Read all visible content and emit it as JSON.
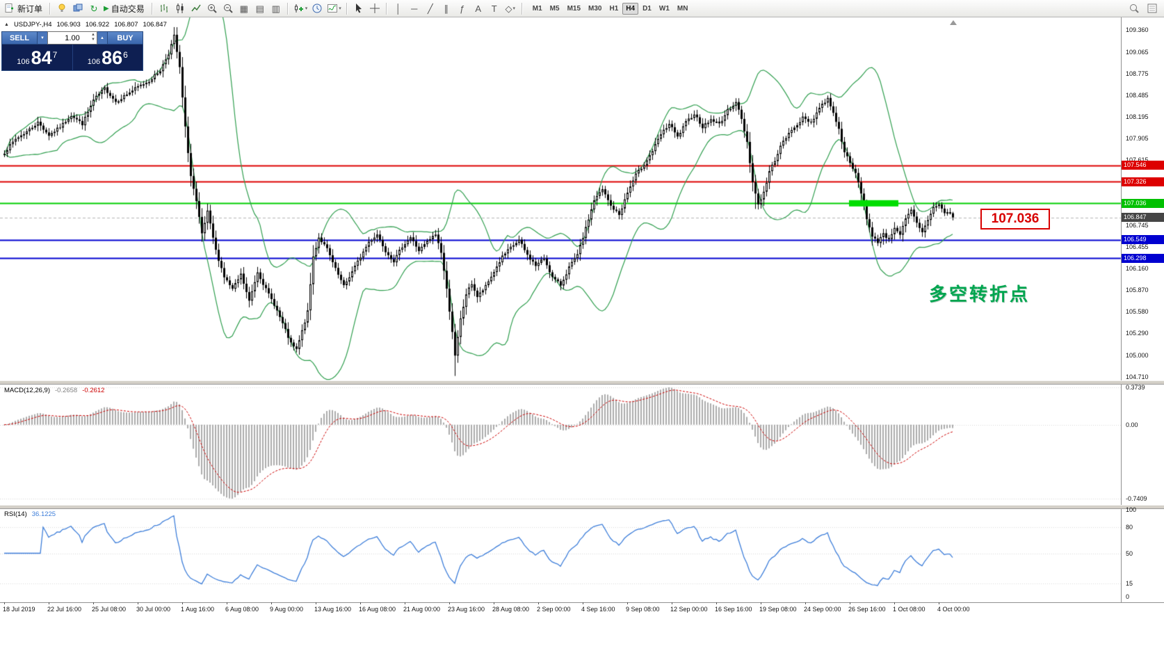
{
  "toolbar": {
    "new_order_label": "新订单",
    "autotrade_label": "自动交易",
    "timeframes": [
      "M1",
      "M5",
      "M15",
      "M30",
      "H1",
      "H4",
      "D1",
      "W1",
      "MN"
    ],
    "active_timeframe": "H4",
    "icons": {
      "one-click": "▲",
      "play": "▶",
      "refresh": "↻",
      "grid": "▦",
      "tile-h": "▤",
      "tile-v": "▥",
      "crosshair": "+",
      "vline": "│",
      "hline": "─",
      "trendline": "╱",
      "channel": "∥",
      "fibo": "ƒ",
      "text": "A",
      "label": "T",
      "shapes": "◇",
      "dropdown": "▾",
      "spin-up": "▲",
      "spin-down": "▼"
    }
  },
  "info": {
    "symbol": "USDJPY-,H4",
    "open": "106.903",
    "high": "106.922",
    "low": "106.807",
    "close": "106.847"
  },
  "order_panel": {
    "sell_label": "SELL",
    "buy_label": "BUY",
    "volume": "1.00",
    "sell_price": {
      "small": "106",
      "big": "84",
      "sup": "7"
    },
    "buy_price": {
      "small": "106",
      "big": "86",
      "sup": "6"
    }
  },
  "annotations": {
    "price_label": "107.036",
    "turning_point": "多空转折点"
  },
  "price_axis": {
    "ticks": [
      "109.360",
      "109.065",
      "108.775",
      "108.485",
      "108.195",
      "107.905",
      "107.615",
      "106.745",
      "106.455",
      "106.160",
      "105.870",
      "105.580",
      "105.290",
      "105.000",
      "104.710"
    ],
    "tags": [
      {
        "label": "107.546",
        "price": 107.546,
        "color": "#dd0000"
      },
      {
        "label": "107.326",
        "price": 107.326,
        "color": "#dd0000"
      },
      {
        "label": "107.036",
        "price": 107.036,
        "color": "#00c000"
      },
      {
        "label": "106.847",
        "price": 106.847,
        "color": "#454545"
      },
      {
        "label": "106.549",
        "price": 106.549,
        "color": "#0000d0"
      },
      {
        "label": "106.298",
        "price": 106.298,
        "color": "#0000d0"
      }
    ]
  },
  "time_axis": {
    "labels": [
      [
        "18 Jul 2019",
        0
      ],
      [
        "22 Jul 16:00",
        16
      ],
      [
        "25 Jul 08:00",
        32
      ],
      [
        "30 Jul 00:00",
        48
      ],
      [
        "1 Aug 16:00",
        64
      ],
      [
        "6 Aug 08:00",
        80
      ],
      [
        "9 Aug 00:00",
        96
      ],
      [
        "13 Aug 16:00",
        112
      ],
      [
        "16 Aug 08:00",
        128
      ],
      [
        "21 Aug 00:00",
        144
      ],
      [
        "23 Aug 16:00",
        160
      ],
      [
        "28 Aug 08:00",
        176
      ],
      [
        "2 Sep 00:00",
        192
      ],
      [
        "4 Sep 16:00",
        208
      ],
      [
        "9 Sep 08:00",
        224
      ],
      [
        "12 Sep 00:00",
        240
      ],
      [
        "16 Sep 16:00",
        256
      ],
      [
        "19 Sep 08:00",
        272
      ],
      [
        "24 Sep 00:00",
        288
      ],
      [
        "26 Sep 16:00",
        304
      ],
      [
        "1 Oct 08:00",
        320
      ],
      [
        "4 Oct 00:00",
        336
      ]
    ]
  },
  "indicators": {
    "macd": {
      "label": "MACD(12,26,9)",
      "value_main": "-0.2658",
      "value_signal": "-0.2612",
      "axis": [
        {
          "label": "0.3739",
          "value": 0.3739
        },
        {
          "label": "0.00",
          "value": 0
        },
        {
          "label": "-0.7409",
          "value": -0.7409
        }
      ]
    },
    "rsi": {
      "label": "RSI(14)",
      "value": "36.1225",
      "axis": [
        {
          "label": "100",
          "value": 100
        },
        {
          "label": "80",
          "value": 80
        },
        {
          "label": "50",
          "value": 50
        },
        {
          "label": "15",
          "value": 15
        },
        {
          "label": "0",
          "value": 0
        }
      ]
    }
  },
  "colors": {
    "bollinger": "#2f9e4e",
    "bull": "#ffffff",
    "bear": "#000000",
    "wick": "#000000",
    "macd_hist": "#ababab",
    "macd_signal": "#cc0000",
    "rsi_line": "#3c7dd9",
    "bid_line": "#b4b4b4",
    "grid_dotted": "#d6d6d6",
    "highlight_green": "#00dd00"
  },
  "chart_data": {
    "type": "candlestick",
    "symbol": "USDJPY-",
    "timeframe": "H4",
    "ylim": [
      104.66,
      109.53
    ],
    "candle_count": 342,
    "current_ohlc": [
      106.903,
      106.922,
      106.807,
      106.847
    ],
    "seed": 7,
    "bollinger": {
      "period": 20,
      "dev": 2
    },
    "hlines": [
      {
        "price": 107.546,
        "color": "#dd0000",
        "width": 2
      },
      {
        "price": 107.326,
        "color": "#dd0000",
        "width": 2
      },
      {
        "price": 107.036,
        "color": "#00ce00",
        "width": 2
      },
      {
        "price": 106.549,
        "color": "#0000d0",
        "width": 2
      },
      {
        "price": 106.298,
        "color": "#0000d0",
        "width": 2
      }
    ],
    "highlight_bar": {
      "from_idx": 304,
      "to_idx": 321,
      "price": 107.036,
      "thickness": 9
    },
    "macd_range": [
      -0.7409,
      0.3739
    ],
    "rsi_current": 36.1225,
    "wick_points": [
      [
        61,
        109.4
      ],
      [
        162,
        104.72
      ],
      [
        270,
        106.96
      ],
      [
        312,
        106.47
      ],
      [
        316,
        106.48
      ]
    ],
    "price_path": [
      [
        0,
        107.72
      ],
      [
        4,
        107.9
      ],
      [
        8,
        108.0
      ],
      [
        12,
        108.12
      ],
      [
        16,
        107.95
      ],
      [
        20,
        108.06
      ],
      [
        24,
        108.22
      ],
      [
        28,
        108.1
      ],
      [
        32,
        108.42
      ],
      [
        36,
        108.58
      ],
      [
        40,
        108.4
      ],
      [
        44,
        108.5
      ],
      [
        48,
        108.6
      ],
      [
        52,
        108.68
      ],
      [
        56,
        108.82
      ],
      [
        59,
        109.05
      ],
      [
        61,
        109.28
      ],
      [
        63,
        108.85
      ],
      [
        65,
        108.05
      ],
      [
        67,
        107.4
      ],
      [
        69,
        107.05
      ],
      [
        71,
        106.62
      ],
      [
        73,
        106.92
      ],
      [
        76,
        106.4
      ],
      [
        79,
        106.05
      ],
      [
        82,
        105.88
      ],
      [
        85,
        106.08
      ],
      [
        88,
        105.72
      ],
      [
        91,
        106.12
      ],
      [
        94,
        105.88
      ],
      [
        97,
        105.68
      ],
      [
        100,
        105.42
      ],
      [
        103,
        105.15
      ],
      [
        105,
        105.07
      ],
      [
        107,
        105.32
      ],
      [
        109,
        105.58
      ],
      [
        111,
        106.32
      ],
      [
        113,
        106.58
      ],
      [
        116,
        106.42
      ],
      [
        119,
        106.15
      ],
      [
        122,
        105.92
      ],
      [
        125,
        106.12
      ],
      [
        128,
        106.32
      ],
      [
        131,
        106.52
      ],
      [
        134,
        106.62
      ],
      [
        137,
        106.4
      ],
      [
        140,
        106.26
      ],
      [
        143,
        106.46
      ],
      [
        146,
        106.58
      ],
      [
        149,
        106.4
      ],
      [
        152,
        106.52
      ],
      [
        155,
        106.62
      ],
      [
        157,
        106.38
      ],
      [
        159,
        105.88
      ],
      [
        161,
        105.32
      ],
      [
        162,
        104.98
      ],
      [
        164,
        105.48
      ],
      [
        166,
        105.82
      ],
      [
        168,
        105.96
      ],
      [
        170,
        105.78
      ],
      [
        173,
        105.92
      ],
      [
        176,
        106.12
      ],
      [
        179,
        106.32
      ],
      [
        182,
        106.44
      ],
      [
        185,
        106.54
      ],
      [
        188,
        106.34
      ],
      [
        191,
        106.2
      ],
      [
        194,
        106.3
      ],
      [
        197,
        106.04
      ],
      [
        200,
        105.94
      ],
      [
        203,
        106.18
      ],
      [
        206,
        106.34
      ],
      [
        209,
        106.7
      ],
      [
        212,
        107.08
      ],
      [
        215,
        107.22
      ],
      [
        218,
        107.0
      ],
      [
        221,
        106.88
      ],
      [
        224,
        107.18
      ],
      [
        227,
        107.42
      ],
      [
        230,
        107.56
      ],
      [
        233,
        107.74
      ],
      [
        236,
        107.96
      ],
      [
        239,
        108.1
      ],
      [
        242,
        107.92
      ],
      [
        245,
        108.12
      ],
      [
        248,
        108.24
      ],
      [
        251,
        108.06
      ],
      [
        254,
        108.16
      ],
      [
        257,
        108.1
      ],
      [
        260,
        108.28
      ],
      [
        263,
        108.4
      ],
      [
        265,
        108.16
      ],
      [
        267,
        107.86
      ],
      [
        269,
        107.32
      ],
      [
        271,
        107.02
      ],
      [
        273,
        107.18
      ],
      [
        275,
        107.46
      ],
      [
        277,
        107.62
      ],
      [
        279,
        107.8
      ],
      [
        281,
        107.92
      ],
      [
        284,
        108.06
      ],
      [
        287,
        108.18
      ],
      [
        290,
        108.12
      ],
      [
        293,
        108.32
      ],
      [
        296,
        108.44
      ],
      [
        298,
        108.26
      ],
      [
        300,
        108.02
      ],
      [
        302,
        107.74
      ],
      [
        304,
        107.56
      ],
      [
        306,
        107.44
      ],
      [
        308,
        107.18
      ],
      [
        310,
        106.84
      ],
      [
        312,
        106.58
      ],
      [
        314,
        106.52
      ],
      [
        316,
        106.64
      ],
      [
        318,
        106.54
      ],
      [
        320,
        106.72
      ],
      [
        322,
        106.62
      ],
      [
        324,
        106.82
      ],
      [
        326,
        106.94
      ],
      [
        328,
        106.76
      ],
      [
        330,
        106.64
      ],
      [
        332,
        106.82
      ],
      [
        334,
        106.98
      ],
      [
        336,
        107.03
      ],
      [
        338,
        106.9
      ],
      [
        340,
        106.92
      ],
      [
        341,
        106.85
      ]
    ]
  }
}
